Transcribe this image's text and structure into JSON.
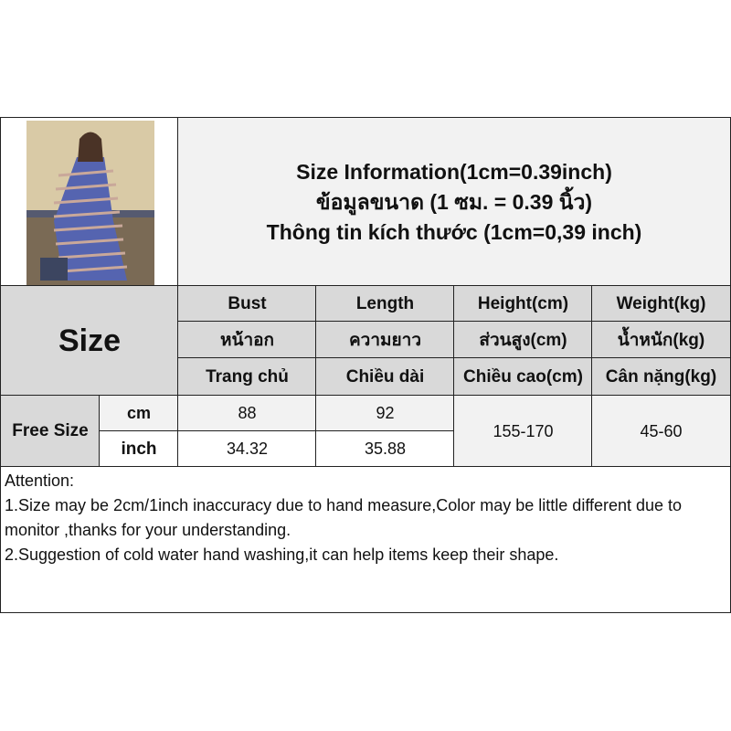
{
  "title_lines": [
    "Size Information(1cm=0.39inch)",
    "ข้อมูลขนาด (1 ซม. = 0.39 นิ้ว)",
    "Thông tin kích thước (1cm=0,39 inch)"
  ],
  "size_label": "Size",
  "columns": [
    {
      "en": "Bust",
      "th": "หน้าอก",
      "vi": "Trang chủ"
    },
    {
      "en": "Length",
      "th": "ความยาว",
      "vi": "Chiều dài"
    },
    {
      "en": "Height(cm)",
      "th": "ส่วนสูง(cm)",
      "vi": "Chiều cao(cm)"
    },
    {
      "en": "Weight(kg)",
      "th": "น้ำหนัก(kg)",
      "vi": "Cân nặng(kg)"
    }
  ],
  "row": {
    "size": "Free Size",
    "cm_label": "cm",
    "inch_label": "inch",
    "bust_cm": "88",
    "length_cm": "92",
    "bust_inch": "34.32",
    "length_inch": "35.88",
    "height": "155-170",
    "weight": "45-60"
  },
  "attention": [
    "Attention:",
    "1.Size may be 2cm/1inch inaccuracy due to hand measure,Color may be little different due to monitor ,thanks for your understanding.",
    "2.Suggestion of cold water hand washing,it can help items keep their shape."
  ]
}
